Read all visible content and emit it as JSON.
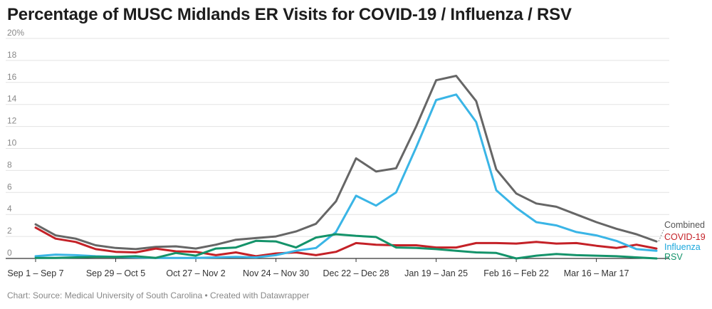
{
  "title": "Percentage of MUSC Midlands ER Visits for COVID-19 / Influenza / RSV",
  "footer": {
    "prefix": "Chart: ",
    "source": "Source: Medical University of South Carolina",
    "separator": " • ",
    "credit": "Created with Datawrapper"
  },
  "chart_data": {
    "type": "line",
    "title": "Percentage of MUSC Midlands ER Visits for COVID-19 / Influenza / RSV",
    "xlabel": "",
    "ylabel": "",
    "ylim": [
      0,
      20
    ],
    "y_ticks": [
      0,
      2,
      4,
      6,
      8,
      10,
      12,
      14,
      16,
      18,
      20
    ],
    "y_tick_labels": [
      "0",
      "2",
      "4",
      "6",
      "8",
      "10",
      "12",
      "14",
      "16",
      "18",
      "20%"
    ],
    "x_tick_labels": [
      "Sep 1 – Sep 7",
      "Sep 29 – Oct 5",
      "Oct 27 – Nov 2",
      "Nov 24 – Nov 30",
      "Dec 22 – Dec 28",
      "Jan 19 – Jan 25",
      "Feb 16 – Feb 22",
      "Mar 16 – Mar 17"
    ],
    "x_tick_positions": [
      0,
      4,
      8,
      12,
      16,
      20,
      24,
      28
    ],
    "num_weeks": 32,
    "grid": true,
    "legend": "right",
    "series": [
      {
        "name": "Combined",
        "color": "#666666",
        "values": [
          3.1,
          2.1,
          1.8,
          1.2,
          0.95,
          0.85,
          1.05,
          1.1,
          0.9,
          1.25,
          1.7,
          1.85,
          2.0,
          2.45,
          3.15,
          5.2,
          9.1,
          7.9,
          8.2,
          12.0,
          16.2,
          16.6,
          14.3,
          8.1,
          5.9,
          5.0,
          4.7,
          4.0,
          3.3,
          2.7,
          2.2,
          1.55
        ]
      },
      {
        "name": "COVID-19",
        "color": "#c42127",
        "values": [
          2.8,
          1.8,
          1.5,
          0.85,
          0.6,
          0.55,
          0.9,
          0.65,
          0.6,
          0.3,
          0.55,
          0.2,
          0.45,
          0.55,
          0.3,
          0.6,
          1.4,
          1.25,
          1.2,
          1.2,
          1.0,
          1.0,
          1.4,
          1.4,
          1.35,
          1.5,
          1.35,
          1.4,
          1.15,
          0.95,
          1.25,
          0.9
        ]
      },
      {
        "name": "Influenza",
        "color": "#3ab5e6",
        "values": [
          0.2,
          0.35,
          0.3,
          0.2,
          0.15,
          0.1,
          0.05,
          0.05,
          0.05,
          0.1,
          0.15,
          0.1,
          0.3,
          0.7,
          0.95,
          2.4,
          5.7,
          4.8,
          6.0,
          10.1,
          14.4,
          14.9,
          12.4,
          6.2,
          4.6,
          3.3,
          3.0,
          2.4,
          2.1,
          1.6,
          0.85,
          0.7
        ]
      },
      {
        "name": "RSV",
        "color": "#14936a",
        "values": [
          0.05,
          0.05,
          0.1,
          0.15,
          0.15,
          0.2,
          0.05,
          0.5,
          0.25,
          0.9,
          1.0,
          1.6,
          1.55,
          1.0,
          1.9,
          2.2,
          2.05,
          1.95,
          1.0,
          0.95,
          0.85,
          0.7,
          0.55,
          0.5,
          0.0,
          0.25,
          0.4,
          0.3,
          0.25,
          0.2,
          0.1,
          0.0
        ]
      }
    ]
  }
}
